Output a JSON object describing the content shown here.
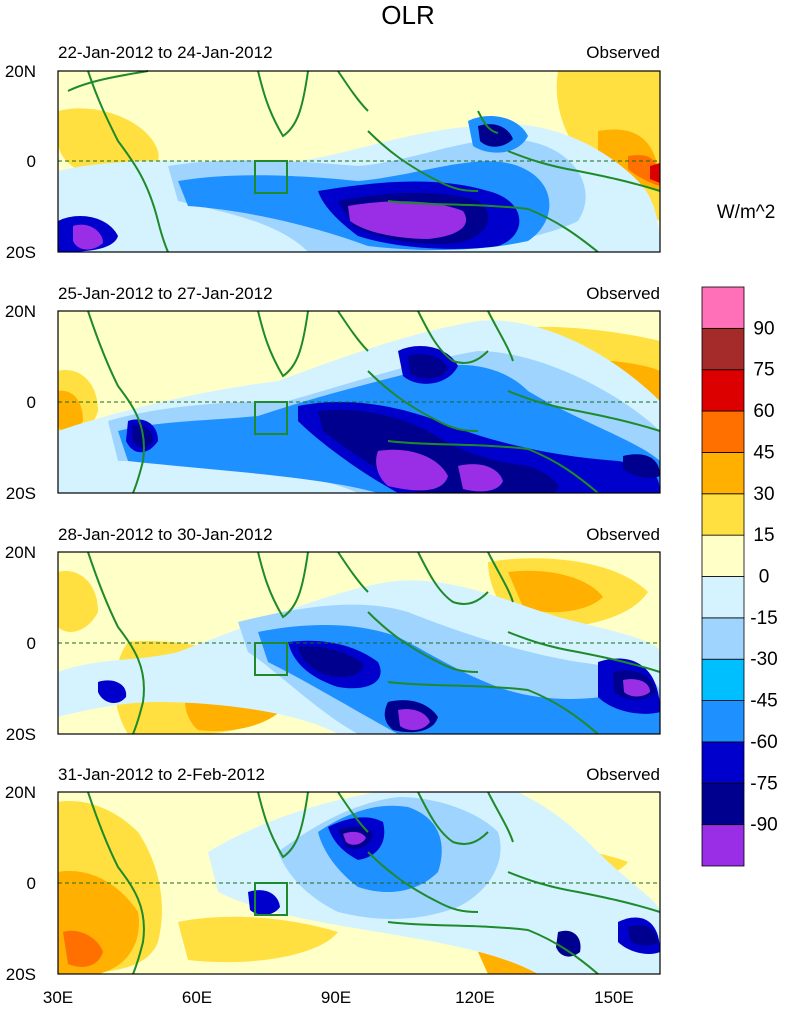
{
  "title": "OLR",
  "units": "W/m^2",
  "panels": [
    {
      "date_range": "22-Jan-2012 to 24-Jan-2012",
      "label": "Observed"
    },
    {
      "date_range": "25-Jan-2012 to 27-Jan-2012",
      "label": "Observed"
    },
    {
      "date_range": "28-Jan-2012 to 30-Jan-2012",
      "label": "Observed"
    },
    {
      "date_range": "31-Jan-2012 to 2-Feb-2012",
      "label": "Observed"
    }
  ],
  "y_ticks": [
    "20N",
    "0",
    "20S"
  ],
  "x_ticks": [
    "30E",
    "60E",
    "90E",
    "120E",
    "150E"
  ],
  "colorbar": {
    "colors": [
      "#9a2de6",
      "#00008f",
      "#0000cd",
      "#1e90ff",
      "#00bfff",
      "#9fd4ff",
      "#d4f3ff",
      "#ffffc8",
      "#ffe040",
      "#ffb000",
      "#ff7000",
      "#dd0000",
      "#a52a2a",
      "#ff70b8"
    ],
    "labels": [
      "-90",
      "-75",
      "-60",
      "-45",
      "-30",
      "-15",
      "0",
      "15",
      "30",
      "45",
      "60",
      "75",
      "90"
    ]
  },
  "box_region": {
    "lon": [
      73,
      80
    ],
    "lat": [
      -10,
      0
    ]
  }
}
